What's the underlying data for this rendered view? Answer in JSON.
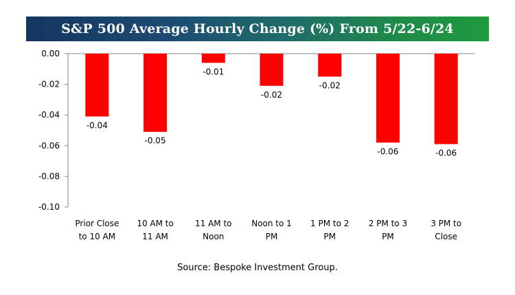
{
  "chart_data": {
    "type": "bar",
    "title": "S&P 500 Average Hourly Change (%) From 5/22-6/24",
    "categories": [
      [
        "Prior Close",
        "to 10 AM"
      ],
      [
        "10 AM to",
        "11 AM"
      ],
      [
        "11 AM to",
        "Noon"
      ],
      [
        "Noon to 1",
        "PM"
      ],
      [
        "1 PM to 2",
        "PM"
      ],
      [
        "2 PM to 3",
        "PM"
      ],
      [
        "3 PM to",
        "Close"
      ]
    ],
    "values": [
      -0.041,
      -0.051,
      -0.006,
      -0.021,
      -0.015,
      -0.058,
      -0.059
    ],
    "data_labels": [
      "-0.04",
      "-0.05",
      "-0.01",
      "-0.02",
      "-0.02",
      "-0.06",
      "-0.06"
    ],
    "ylim": [
      -0.1,
      0.0
    ],
    "yticks": [
      "0.00",
      "-0.02",
      "-0.04",
      "-0.06",
      "-0.08",
      "-0.10"
    ],
    "ytick_values": [
      0.0,
      -0.02,
      -0.04,
      -0.06,
      -0.08,
      -0.1
    ],
    "bar_color": "#ff0000",
    "grid": false,
    "legend": "none"
  },
  "source": "Source: Bespoke Investment Group.",
  "colors": {
    "title_gradient_start": "#14365f",
    "title_gradient_end": "#1e9a3c",
    "title_text": "#ffffff"
  }
}
